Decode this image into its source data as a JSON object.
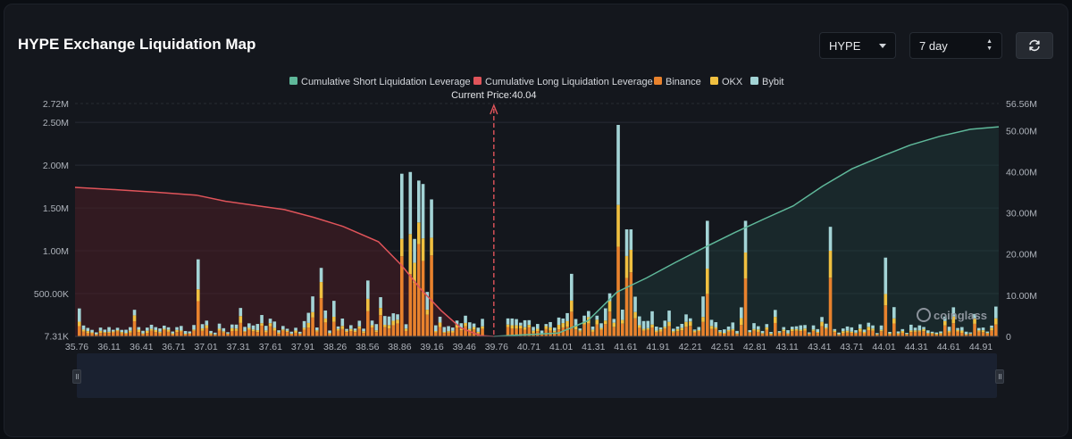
{
  "header": {
    "title": "HYPE Exchange Liquidation Map",
    "coin_select": "HYPE",
    "range_select": "7 day",
    "refresh_icon": "refresh-icon"
  },
  "brand": {
    "watermark": "coinglass"
  },
  "colors": {
    "short_line": "#5fb89a",
    "long_line": "#e0545a",
    "binance": "#e8822d",
    "okx": "#f0c040",
    "bybit": "#a3d4d6",
    "current_price": "#e0545a"
  },
  "chart_data": {
    "type": "bar",
    "title": "HYPE Exchange Liquidation Map",
    "current_price_label": "Current Price:40.04",
    "current_price": 40.04,
    "legend": [
      {
        "key": "short",
        "label": "Cumulative Short Liquidation Leverage"
      },
      {
        "key": "long",
        "label": "Cumulative Long Liquidation Leverage"
      },
      {
        "key": "binance",
        "label": "Binance"
      },
      {
        "key": "okx",
        "label": "OKX"
      },
      {
        "key": "bybit",
        "label": "Bybit"
      }
    ],
    "x_range": [
      35.76,
      45.2
    ],
    "x_ticks": [
      "35.76",
      "36.11",
      "36.41",
      "36.71",
      "37.01",
      "37.31",
      "37.61",
      "37.91",
      "38.26",
      "38.56",
      "38.86",
      "39.16",
      "39.46",
      "39.76",
      "40.71",
      "41.01",
      "41.31",
      "41.61",
      "41.91",
      "42.21",
      "42.51",
      "42.81",
      "43.11",
      "43.41",
      "43.71",
      "44.01",
      "44.31",
      "44.61",
      "44.91"
    ],
    "y_left_ticks": [
      "7.31K",
      "500.00K",
      "1.00M",
      "1.50M",
      "2.00M",
      "2.50M",
      "2.72M"
    ],
    "y_left_values": [
      7310,
      500000,
      1000000,
      1500000,
      2000000,
      2500000,
      2720000
    ],
    "y_left_range": [
      0,
      2720000
    ],
    "y_right_ticks": [
      "0",
      "10.00M",
      "20.00M",
      "30.00M",
      "40.00M",
      "50.00M",
      "56.56M"
    ],
    "y_right_values": [
      0,
      10000000,
      20000000,
      30000000,
      40000000,
      50000000,
      56560000
    ],
    "y_right_range": [
      0,
      56560000
    ],
    "series": [
      {
        "name": "Cumulative Long Liquidation Leverage",
        "type": "line",
        "points": [
          [
            35.76,
            36.2
          ],
          [
            36.2,
            35.6
          ],
          [
            36.6,
            35.0
          ],
          [
            37.0,
            34.3
          ],
          [
            37.3,
            32.8
          ],
          [
            37.6,
            31.8
          ],
          [
            37.9,
            30.8
          ],
          [
            38.2,
            28.9
          ],
          [
            38.5,
            26.7
          ],
          [
            38.86,
            23.0
          ],
          [
            39.1,
            17.2
          ],
          [
            39.3,
            11.3
          ],
          [
            39.5,
            6.3
          ],
          [
            39.7,
            2.1
          ],
          [
            39.9,
            0.2
          ],
          [
            40.04,
            0.0
          ]
        ]
      },
      {
        "name": "Cumulative Short Liquidation Leverage",
        "type": "line",
        "points": [
          [
            40.04,
            0.0
          ],
          [
            40.7,
            0.8
          ],
          [
            41.0,
            3.8
          ],
          [
            41.3,
            10.8
          ],
          [
            41.6,
            14.2
          ],
          [
            41.9,
            18.0
          ],
          [
            42.2,
            21.7
          ],
          [
            42.5,
            25.2
          ],
          [
            42.8,
            28.5
          ],
          [
            43.1,
            31.7
          ],
          [
            43.4,
            36.5
          ],
          [
            43.7,
            40.7
          ],
          [
            44.0,
            43.7
          ],
          [
            44.3,
            46.5
          ],
          [
            44.6,
            48.6
          ],
          [
            44.91,
            50.3
          ],
          [
            45.2,
            50.9
          ]
        ]
      }
    ],
    "bars_note": "Stacked per-price liquidation bars by exchange (Binance, OKX, Bybit); top values by price bin",
    "bar_peaks": [
      {
        "x": 37.01,
        "total": 900000
      },
      {
        "x": 38.26,
        "total": 800000
      },
      {
        "x": 39.08,
        "total": 1900000
      },
      {
        "x": 39.16,
        "total": 1920000
      },
      {
        "x": 39.24,
        "total": 1820000
      },
      {
        "x": 39.3,
        "total": 1780000
      },
      {
        "x": 39.4,
        "total": 1600000
      },
      {
        "x": 41.31,
        "total": 2470000
      },
      {
        "x": 41.4,
        "total": 1250000
      },
      {
        "x": 42.21,
        "total": 1350000
      },
      {
        "x": 42.6,
        "total": 1350000
      },
      {
        "x": 43.45,
        "total": 1280000
      },
      {
        "x": 44.01,
        "total": 920000
      }
    ]
  }
}
